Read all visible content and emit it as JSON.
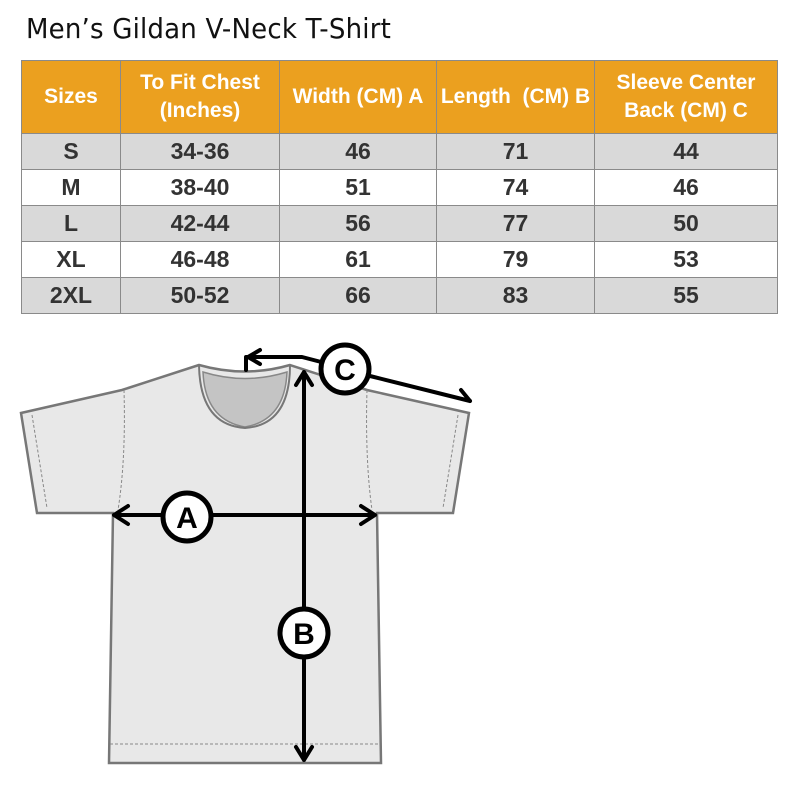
{
  "title": "Men’s Gildan V-Neck T-Shirt",
  "table": {
    "headers": [
      "Sizes",
      "To Fit Chest (Inches)",
      "Width (CM) A",
      "Length  (CM) B",
      "Sleeve Center Back (CM) C"
    ],
    "rows": [
      [
        "S",
        "34-36",
        "46",
        "71",
        "44"
      ],
      [
        "M",
        "38-40",
        "51",
        "74",
        "46"
      ],
      [
        "L",
        "42-44",
        "56",
        "77",
        "50"
      ],
      [
        "XL",
        "46-48",
        "61",
        "79",
        "53"
      ],
      [
        "2XL",
        "50-52",
        "66",
        "83",
        "55"
      ]
    ]
  },
  "diagram": {
    "labels": {
      "a": "A",
      "b": "B",
      "c": "C"
    }
  },
  "colors": {
    "header": "#eba01f",
    "row_shaded": "#d9d9d9",
    "shirt": "#e8e8e8"
  }
}
